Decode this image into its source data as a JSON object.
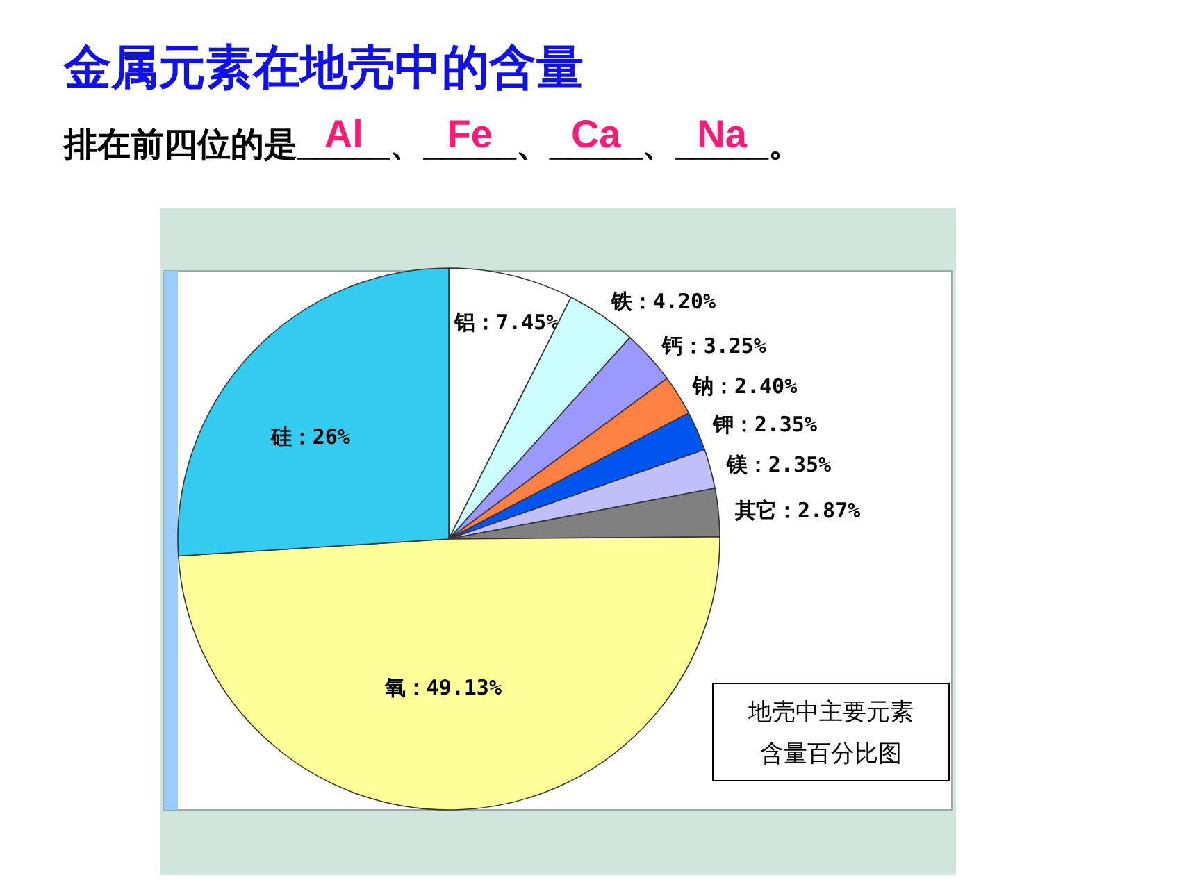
{
  "chart_data": {
    "type": "pie",
    "title": "金属元素在地壳中的含量",
    "subtitle": "排在前四位的是_____、_____、_____、_____。",
    "annotations": [
      "Al",
      "Fe",
      "Ca",
      "Na",
      "地壳中主要元素含量百分比图"
    ],
    "categories": [
      "铝",
      "铁",
      "钙",
      "钠",
      "钾",
      "镁",
      "其它",
      "氧",
      "硅"
    ],
    "values": [
      7.45,
      4.2,
      3.25,
      2.4,
      2.35,
      2.35,
      2.87,
      49.13,
      26
    ],
    "value_labels": [
      "7.45%",
      "4.20%",
      "3.25%",
      "2.40%",
      "2.35%",
      "2.35%",
      "2.87%",
      "49.13%",
      "26%"
    ],
    "colors": [
      "#ffffff",
      "#ccffff",
      "#9999ff",
      "#ff8040",
      "#0055ee",
      "#c0c0f8",
      "#808080",
      "#ffff99",
      "#33ccee"
    ]
  }
}
